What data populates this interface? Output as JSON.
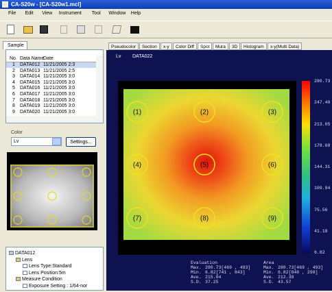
{
  "window": {
    "title": "CA-S20w - [CA-S20w1.mcl]"
  },
  "menu": [
    "File",
    "Edit",
    "View",
    "Instrument",
    "Tool",
    "Window",
    "Help"
  ],
  "sample_panel": {
    "tab": "Sample",
    "table": {
      "headers": [
        "No.",
        "Data Name",
        "Date"
      ],
      "rows": [
        [
          "1",
          "DATA012",
          "11/21/2005 2:3"
        ],
        [
          "2",
          "DATA013",
          "11/21/2005 2:5"
        ],
        [
          "3",
          "DATA014",
          "11/21/2005 3:0"
        ],
        [
          "4",
          "DATA015",
          "11/21/2005 3:0"
        ],
        [
          "5",
          "DATA016",
          "11/21/2005 3:0"
        ],
        [
          "6",
          "DATA017",
          "11/21/2005 3:0"
        ],
        [
          "7",
          "DATA018",
          "11/21/2005 3:0"
        ],
        [
          "8",
          "DATA019",
          "11/21/2005 3:0"
        ],
        [
          "9",
          "DATA020",
          "11/21/2005 3:0"
        ]
      ]
    },
    "color_label": "Color",
    "color_select": "Lv",
    "settings_button": "Settings..."
  },
  "tree": [
    "DATA012",
    "Lens",
    "Lens Type:Standard",
    "Lens Position:5m",
    "Measure Condition",
    "Exposure Setting : 1/64-nor"
  ],
  "view": {
    "tabs": [
      "Pseudocolor",
      "Section",
      "x-y",
      "Color Diff",
      "Spot",
      "Mura",
      "3D",
      "Histogram",
      "x-y(Multi Data)"
    ],
    "header": {
      "quantity": "Lv",
      "data_name": "DATA022"
    },
    "spots": [
      "(1)",
      "(2)",
      "(3)",
      "(4)",
      "(5)",
      "(6)",
      "(7)",
      "(8)",
      "(9)"
    ],
    "scale_labels": [
      "280.73",
      "247.40",
      "213.05",
      "178.68",
      "144.31",
      "109.94",
      "75.56",
      "41.19",
      "6.82"
    ],
    "stats": {
      "evaluation": {
        "title": "Evaluation",
        "rows": [
          [
            "Max.",
            "280.73[469 , 493]"
          ],
          [
            "Min.",
            "6.82[741 , 843]"
          ],
          [
            "Ave.",
            "215.04"
          ],
          [
            "S.D.",
            "37.25"
          ]
        ]
      },
      "area": {
        "title": "Area",
        "rows": [
          [
            "Max.",
            "280.73[469 , 493]"
          ],
          [
            "Min.",
            "6.82[848 , 298]"
          ],
          [
            "Ave.",
            "212.38"
          ],
          [
            "S.D.",
            "43.57"
          ]
        ]
      }
    }
  }
}
